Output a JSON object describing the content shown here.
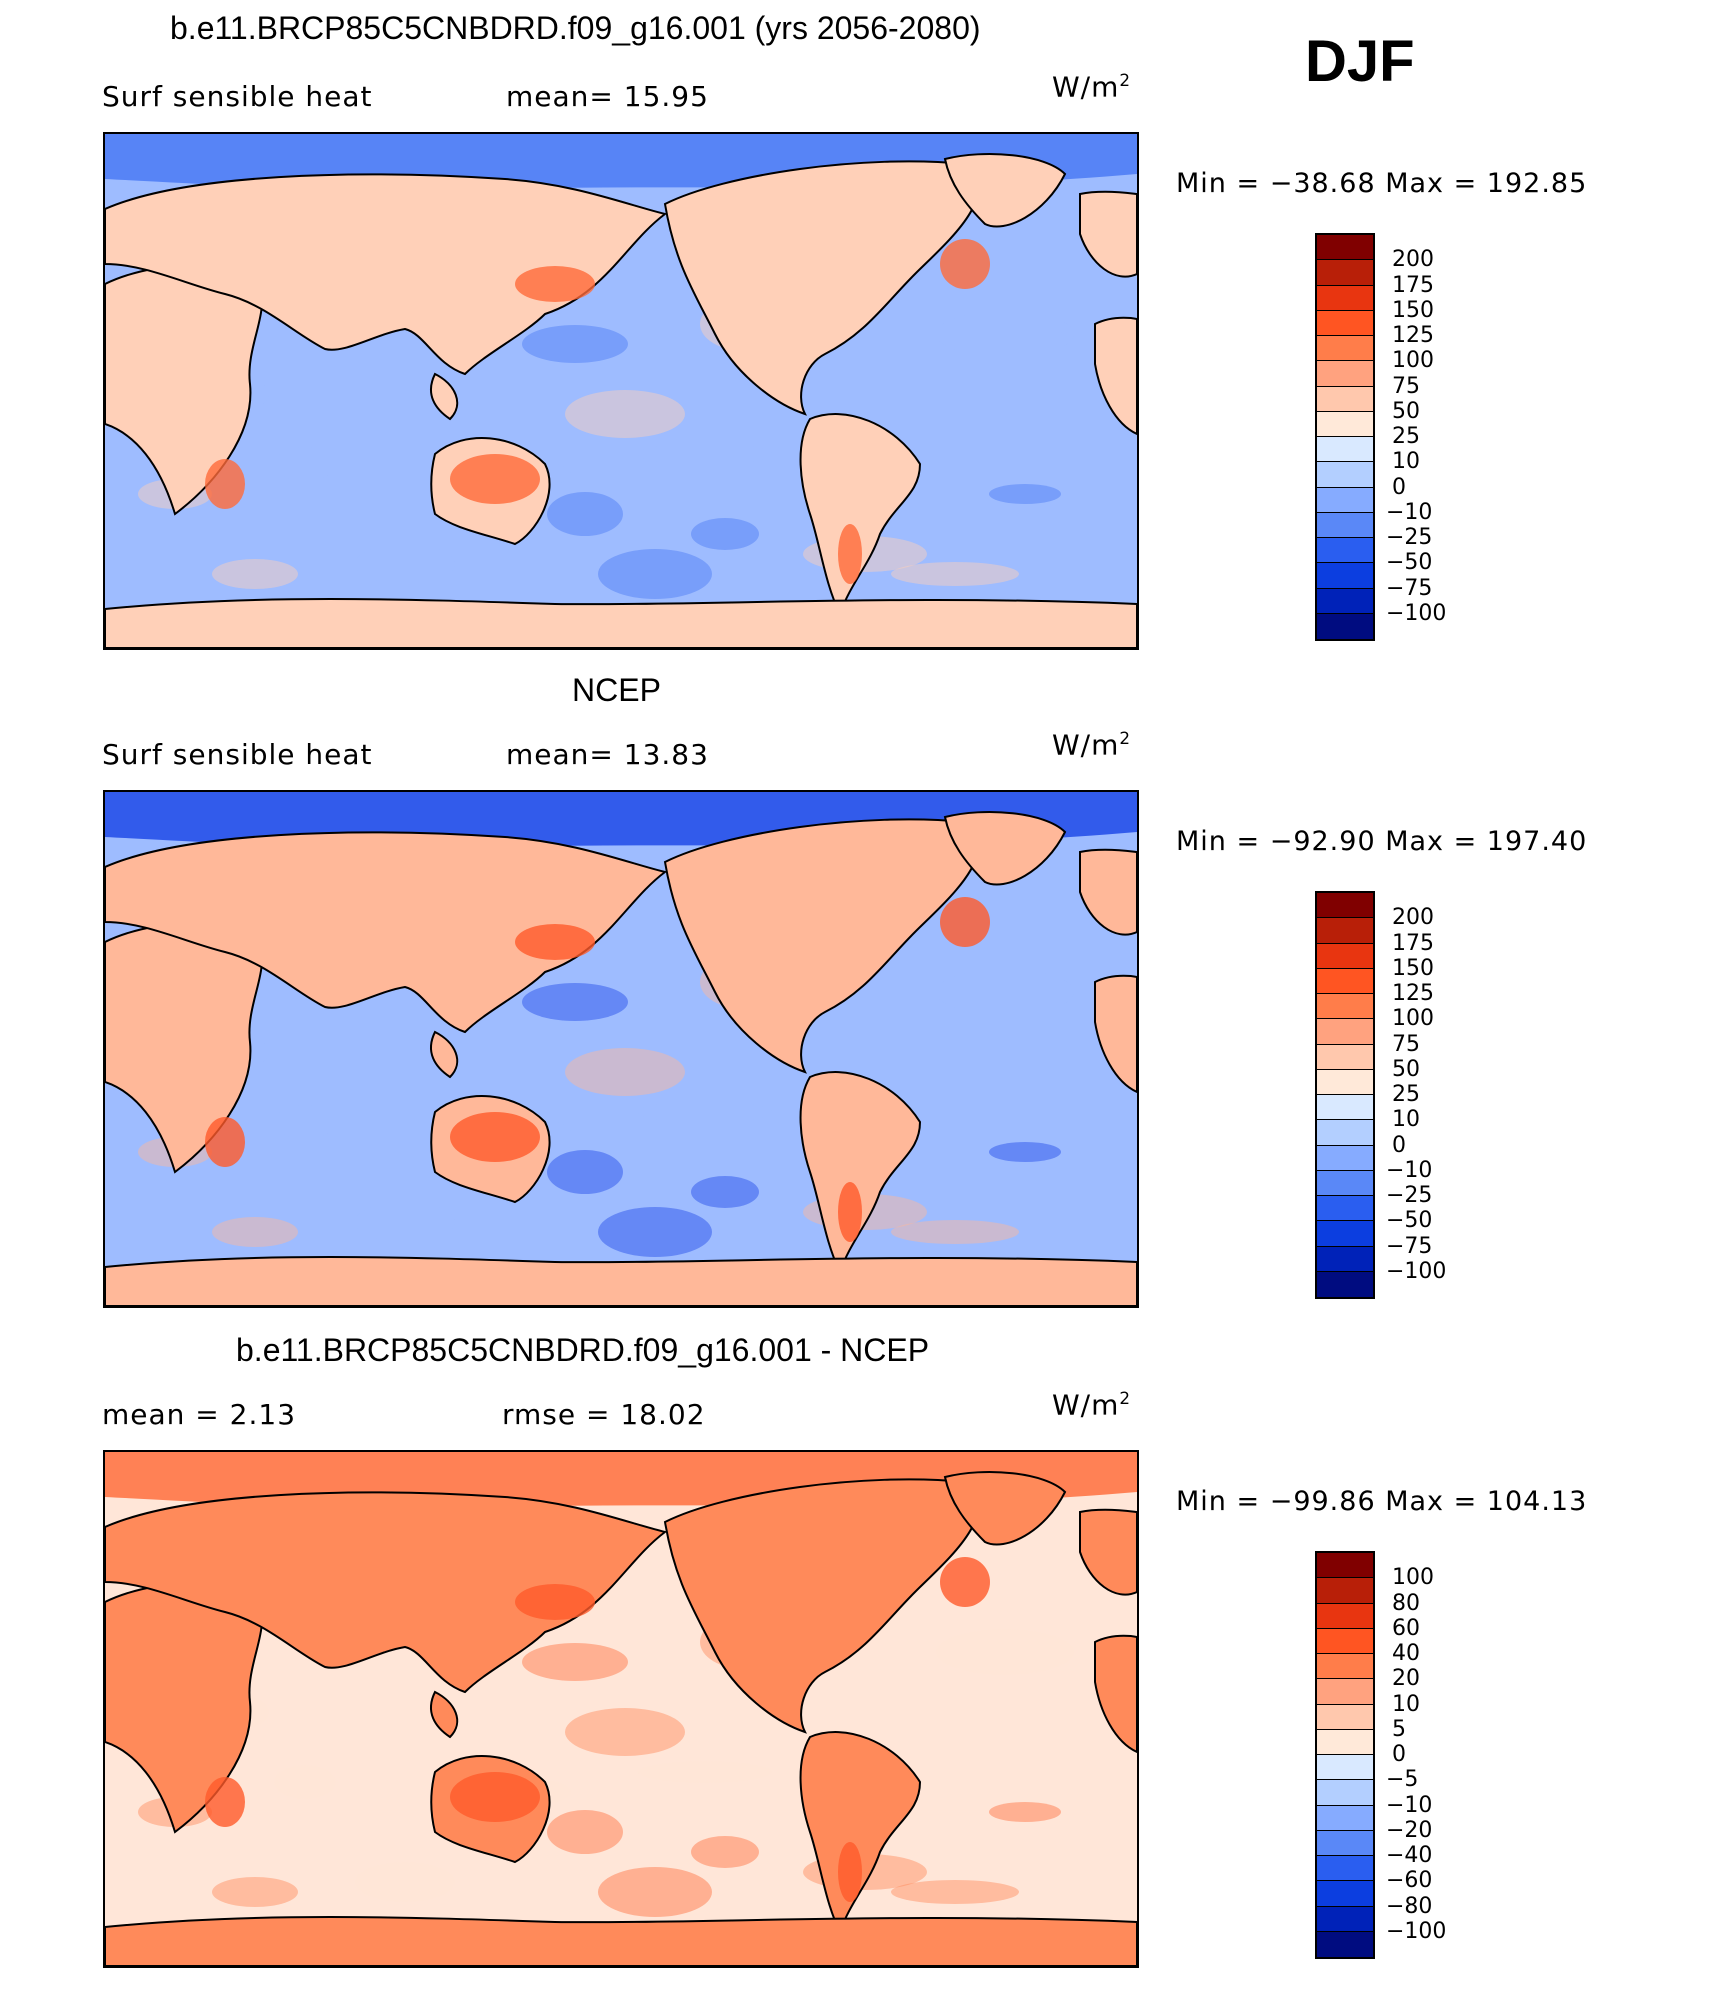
{
  "season": "DJF",
  "units": "W/m",
  "units_exp": "2",
  "panels": [
    {
      "title": "b.e11.BRCP85C5CNBDRD.f09_g16.001 (yrs 2056-2080)",
      "left_label": "Surf  sensible  heat",
      "mid_label": "mean=   15.95",
      "min_max": "Min  =  −38.68  Max  =  192.85",
      "levels": [
        "200",
        "175",
        "150",
        "125",
        "100",
        "75",
        "50",
        "25",
        "10",
        "0",
        "−10",
        "−25",
        "−50",
        "−75",
        "−100"
      ],
      "ocean_color": "#9ebcff",
      "land_color": "#ffd0b8",
      "high_color": "#ff6a3a",
      "north_color": "#4a7af5"
    },
    {
      "title": "NCEP",
      "left_label": "Surf  sensible  heat",
      "mid_label": "mean=   13.83",
      "min_max": "Min  =  −92.90  Max  =  197.40",
      "levels": [
        "200",
        "175",
        "150",
        "125",
        "100",
        "75",
        "50",
        "25",
        "10",
        "0",
        "−10",
        "−25",
        "−50",
        "−75",
        "−100"
      ],
      "ocean_color": "#9ebcff",
      "land_color": "#ffb899",
      "high_color": "#ff5a2a",
      "north_color": "#1f4ae8"
    },
    {
      "title": "b.e11.BRCP85C5CNBDRD.f09_g16.001 - NCEP",
      "left_label": "mean  =     2.13",
      "mid_label": "rmse  =    18.02",
      "min_max": "Min  =  −99.86  Max  =  104.13",
      "levels": [
        "100",
        "80",
        "60",
        "40",
        "20",
        "10",
        "5",
        "0",
        "−5",
        "−10",
        "−20",
        "−40",
        "−60",
        "−80",
        "−100"
      ],
      "ocean_color": "#ffe6d8",
      "land_color": "#ff8a5a",
      "high_color": "#ff5a2a",
      "north_color": "#ff6e3e"
    }
  ],
  "colorbar_colors": [
    "#800000",
    "#b81f08",
    "#e83510",
    "#ff5522",
    "#ff7d4a",
    "#ffa27f",
    "#ffc8ad",
    "#ffe9d9",
    "#d9e9ff",
    "#b3cfff",
    "#86abff",
    "#5a88f7",
    "#2a5ef0",
    "#0c3ee0",
    "#0022b8",
    "#000c80"
  ]
}
